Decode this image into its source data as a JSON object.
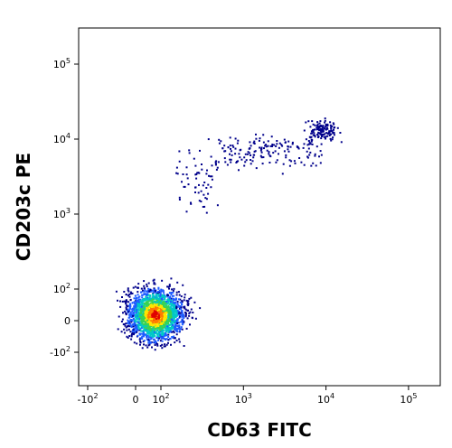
{
  "chart_data": {
    "type": "scatter",
    "subtype": "flow-cytometry-density-dot-plot",
    "xlabel": "CD63 FITC",
    "ylabel": "CD203c PE",
    "x_scale": "biexponential",
    "y_scale": "biexponential",
    "x_ticks": [
      "-10^2",
      "0",
      "10^2",
      "10^3",
      "10^4",
      "10^5"
    ],
    "y_ticks": [
      "-10^2",
      "0",
      "10^2",
      "10^3",
      "10^4",
      "10^5"
    ],
    "xlim": [
      -200,
      200000
    ],
    "ylim": [
      -200,
      200000
    ],
    "grid": false,
    "legend": "none",
    "density_colors": [
      "#00008b",
      "#1e5cff",
      "#00c8c8",
      "#39d353",
      "#ffe600",
      "#ff7a00",
      "#e00000"
    ],
    "populations": [
      {
        "x_center": 40,
        "y_center": 20,
        "x_spread": 45,
        "y_spread": 45,
        "relative_count": 0.86
      },
      {
        "x_center": 9000,
        "y_center": 13000,
        "x_spread_log": 0.2,
        "y_spread_log": 0.15,
        "relative_count": 0.05
      },
      {
        "x_center_range": [
          150,
          9000
        ],
        "y_center": 7000,
        "relative_count": 0.09
      }
    ]
  }
}
